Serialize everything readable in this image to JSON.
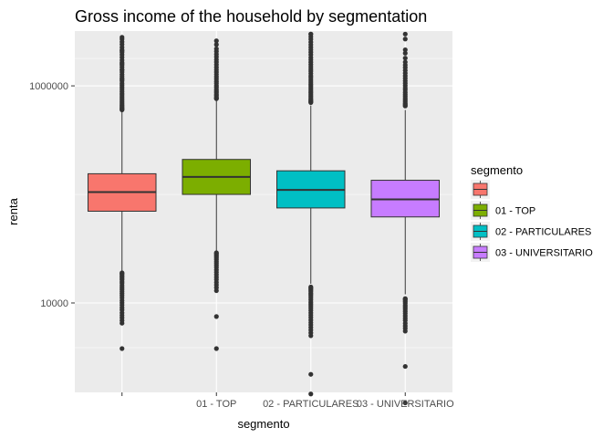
{
  "chart_data": {
    "type": "boxplot",
    "title": "Gross income of the household by segmentation",
    "xlabel": "segmento",
    "ylabel": "renta",
    "y_scale": "log10",
    "ylim": [
      1500,
      3200000
    ],
    "y_ticks": [
      {
        "value": 10000,
        "label": "10000"
      },
      {
        "value": 1000000,
        "label": "1000000"
      }
    ],
    "grid": true,
    "panel_background": "#ebebeb",
    "legend": {
      "title": "segmento",
      "position": "right"
    },
    "categories": [
      "",
      "01 - TOP",
      "02 - PARTICULARES",
      "03 - UNIVERSITARIO"
    ],
    "series": [
      {
        "name": "",
        "color": "#f8766d",
        "whisker_low": 18000,
        "q1": 70000,
        "median": 105000,
        "q3": 155000,
        "whisker_high": 590000,
        "outliers_low_band": [
          6500,
          19000
        ],
        "outliers_high_band": [
          600000,
          2700000
        ],
        "outlier_points": [
          3800,
          2800000,
          2100000,
          1600000,
          1400000,
          1150000
        ]
      },
      {
        "name": "01 - TOP",
        "color": "#7cae00",
        "whisker_low": 30000,
        "q1": 100000,
        "median": 145000,
        "q3": 210000,
        "whisker_high": 750000,
        "outliers_low_band": [
          13000,
          29000
        ],
        "outliers_high_band": [
          760000,
          2200000
        ],
        "outlier_points": [
          7500,
          3800,
          2600000,
          2400000
        ]
      },
      {
        "name": "02 - PARTICULARES",
        "color": "#00bfc4",
        "whisker_low": 15000,
        "q1": 75000,
        "median": 110000,
        "q3": 165000,
        "whisker_high": 660000,
        "outliers_low_band": [
          5000,
          14000
        ],
        "outliers_high_band": [
          700000,
          3000000
        ],
        "outlier_points": [
          2200,
          1450,
          3000000
        ]
      },
      {
        "name": "03 - UNIVERSITARIO",
        "color": "#c77cff",
        "whisker_low": 12000,
        "q1": 62000,
        "median": 90000,
        "q3": 135000,
        "whisker_high": 600000,
        "outliers_low_band": [
          5500,
          11000
        ],
        "outliers_high_band": [
          650000,
          1650000
        ],
        "outlier_points": [
          2600,
          1200,
          3000000,
          2700000,
          2150000,
          2000000,
          1800000
        ]
      }
    ]
  }
}
